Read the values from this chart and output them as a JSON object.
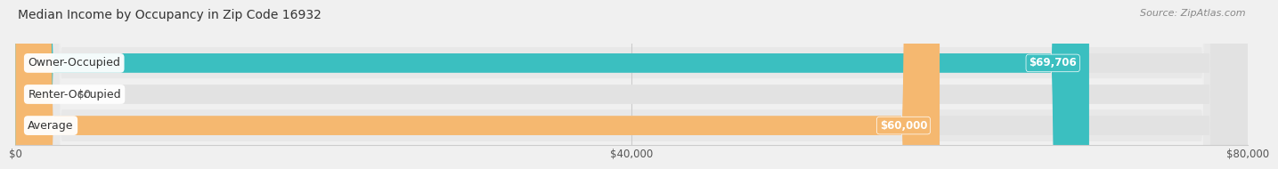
{
  "title": "Median Income by Occupancy in Zip Code 16932",
  "source": "Source: ZipAtlas.com",
  "categories": [
    "Owner-Occupied",
    "Renter-Occupied",
    "Average"
  ],
  "values": [
    69706,
    0,
    60000
  ],
  "bar_colors": [
    "#3bbfc0",
    "#c9a8d4",
    "#f5b870"
  ],
  "value_labels": [
    "$69,706",
    "$0",
    "$60,000"
  ],
  "xlim": [
    0,
    80000
  ],
  "xticks": [
    0,
    40000,
    80000
  ],
  "xtick_labels": [
    "$0",
    "$40,000",
    "$80,000"
  ],
  "bg_color": "#f0f0f0",
  "bar_bg_color": "#e2e2e2",
  "row_bg_colors": [
    "#e8e8e8",
    "#f0f0f0",
    "#e8e8e8"
  ],
  "title_fontsize": 10,
  "source_fontsize": 8,
  "label_fontsize": 9,
  "value_fontsize": 8.5,
  "bar_height": 0.62,
  "fig_width": 14.06,
  "fig_height": 1.96
}
